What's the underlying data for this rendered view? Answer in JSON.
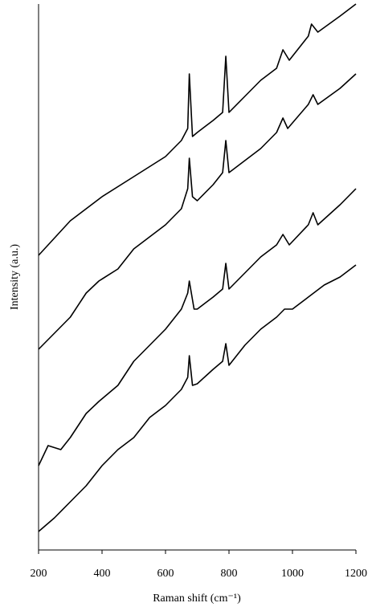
{
  "chart_data": {
    "type": "line",
    "xlabel": "Raman shift (cm⁻¹)",
    "ylabel": "Intensity (a.u.)",
    "xlim": [
      200,
      1200
    ],
    "xticks": [
      200,
      400,
      600,
      800,
      1000,
      1200
    ],
    "ylim": [
      0,
      680
    ],
    "series": [
      {
        "color": "#000000",
        "x": [
          200,
          300,
          400,
          500,
          600,
          650,
          670,
          675,
          685,
          700,
          750,
          780,
          790,
          800,
          850,
          900,
          950,
          970,
          990,
          1050,
          1060,
          1080,
          1150,
          1200
        ],
        "values": [
          367,
          410,
          440,
          465,
          490,
          510,
          525,
          593,
          515,
          520,
          535,
          545,
          615,
          545,
          565,
          585,
          600,
          623,
          610,
          640,
          655,
          645,
          665,
          680
        ]
      },
      {
        "color": "#000000",
        "x": [
          200,
          250,
          300,
          350,
          390,
          450,
          500,
          550,
          600,
          650,
          670,
          675,
          685,
          700,
          750,
          780,
          790,
          800,
          850,
          900,
          950,
          970,
          985,
          1050,
          1065,
          1080,
          1150,
          1200
        ],
        "values": [
          250,
          270,
          290,
          320,
          335,
          350,
          375,
          390,
          405,
          425,
          450,
          488,
          440,
          435,
          455,
          470,
          510,
          470,
          485,
          500,
          520,
          538,
          525,
          555,
          567,
          555,
          575,
          593
        ]
      },
      {
        "color": "#000000",
        "x": [
          200,
          230,
          270,
          300,
          350,
          390,
          450,
          500,
          550,
          600,
          650,
          670,
          675,
          690,
          700,
          750,
          780,
          790,
          800,
          850,
          900,
          950,
          970,
          990,
          1050,
          1065,
          1080,
          1150,
          1200
        ],
        "values": [
          105,
          130,
          125,
          140,
          170,
          185,
          205,
          235,
          255,
          275,
          300,
          320,
          335,
          300,
          300,
          315,
          325,
          357,
          325,
          345,
          365,
          380,
          393,
          380,
          405,
          420,
          405,
          430,
          450
        ]
      },
      {
        "color": "#000000",
        "x": [
          200,
          250,
          300,
          350,
          400,
          450,
          500,
          550,
          600,
          650,
          670,
          675,
          685,
          700,
          750,
          780,
          790,
          800,
          850,
          900,
          950,
          975,
          1000,
          1050,
          1100,
          1150,
          1200
        ],
        "values": [
          23,
          40,
          60,
          80,
          105,
          125,
          140,
          165,
          180,
          200,
          215,
          242,
          205,
          207,
          225,
          235,
          257,
          230,
          255,
          275,
          290,
          300,
          300,
          315,
          330,
          340,
          355
        ]
      }
    ]
  }
}
